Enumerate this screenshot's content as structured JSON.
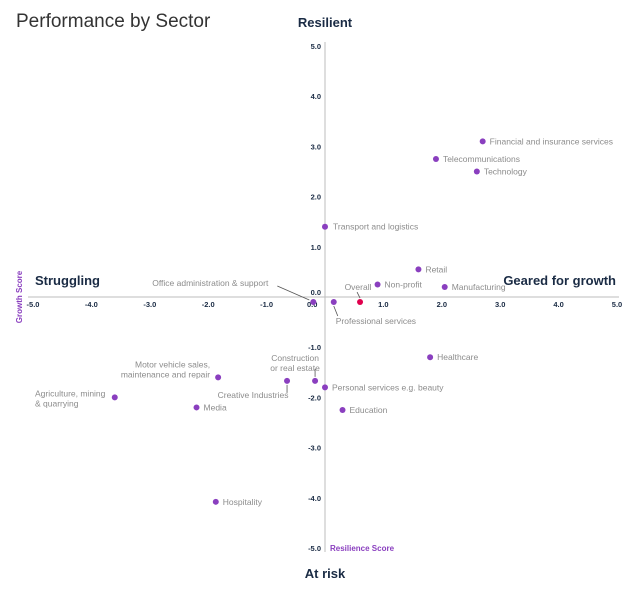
{
  "chart_data": {
    "type": "scatter",
    "title": "Performance by Sector",
    "xlabel": "Resilience Score",
    "ylabel": "Growth Score",
    "xlim": [
      -5,
      5
    ],
    "ylim": [
      -5,
      5
    ],
    "grid": false,
    "x_ticks": [
      "-5.0",
      "-4.0",
      "-3.0",
      "-2.0",
      "-1.0",
      "0.0",
      "1.0",
      "2.0",
      "3.0",
      "4.0",
      "5.0"
    ],
    "y_ticks": [
      "5.0",
      "4.0",
      "3.0",
      "2.0",
      "1.0",
      "0.0",
      "-1.0",
      "-2.0",
      "-3.0",
      "-4.0",
      "-5.0"
    ],
    "quadrant_labels": {
      "top": "Resilient",
      "bottom": "At risk",
      "left": "Struggling",
      "right": "Geared for growth"
    },
    "colors": {
      "sector": "#8a3fbf",
      "overall": "#e0004d"
    },
    "points": [
      {
        "label": "Financial and insurance services",
        "x": 2.7,
        "y": 3.1
      },
      {
        "label": "Telecommunications",
        "x": 1.9,
        "y": 2.75
      },
      {
        "label": "Technology",
        "x": 2.6,
        "y": 2.5
      },
      {
        "label": "Transport and logistics",
        "x": 0.0,
        "y": 1.4
      },
      {
        "label": "Retail",
        "x": 1.6,
        "y": 0.55
      },
      {
        "label": "Non-profit",
        "x": 0.9,
        "y": 0.25
      },
      {
        "label": "Manufacturing",
        "x": 2.05,
        "y": 0.2
      },
      {
        "label": "Overall",
        "x": 0.6,
        "y": -0.1,
        "highlight": true
      },
      {
        "label": "Professional services",
        "x": 0.15,
        "y": -0.1
      },
      {
        "label": "Office administration & support",
        "x": -0.2,
        "y": -0.1
      },
      {
        "label": "Healthcare",
        "x": 1.8,
        "y": -1.2
      },
      {
        "label": "Personal services e.g. beauty",
        "x": 0.0,
        "y": -1.8
      },
      {
        "label": "Education",
        "x": 0.3,
        "y": -2.25
      },
      {
        "label": "Construction or real estate",
        "x": -0.17,
        "y": -1.67
      },
      {
        "label": "Creative Industries",
        "x": -0.65,
        "y": -1.67
      },
      {
        "label": "Motor vehicle sales, maintenance and repair",
        "x": -1.83,
        "y": -1.6
      },
      {
        "label": "Media",
        "x": -2.2,
        "y": -2.2
      },
      {
        "label": "Agriculture, mining & quarrying",
        "x": -3.6,
        "y": -2.0
      },
      {
        "label": "Hospitality",
        "x": -1.87,
        "y": -4.08
      }
    ]
  }
}
